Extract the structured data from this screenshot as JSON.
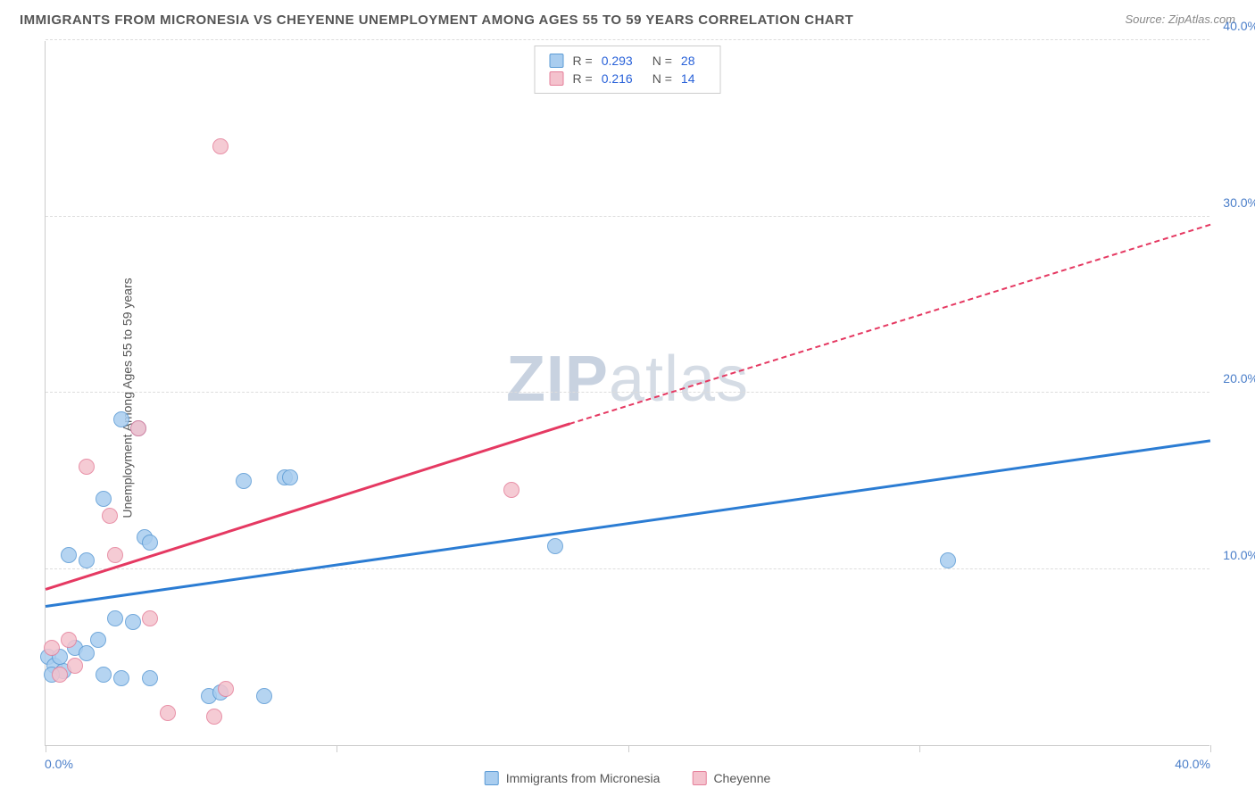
{
  "chart": {
    "type": "scatter",
    "title": "IMMIGRANTS FROM MICRONESIA VS CHEYENNE UNEMPLOYMENT AMONG AGES 55 TO 59 YEARS CORRELATION CHART",
    "source": "Source: ZipAtlas.com",
    "y_axis_label": "Unemployment Among Ages 55 to 59 years",
    "watermark_part1": "ZIP",
    "watermark_part2": "atlas",
    "xlim": [
      0,
      40
    ],
    "ylim": [
      0,
      40
    ],
    "y_ticks": [
      10,
      20,
      30,
      40
    ],
    "y_tick_labels": [
      "10.0%",
      "20.0%",
      "30.0%",
      "40.0%"
    ],
    "x_ticks": [
      0,
      10,
      20,
      30,
      40
    ],
    "x_tick_label_left": "0.0%",
    "x_tick_label_right": "40.0%",
    "background_color": "#ffffff",
    "grid_color": "#dddddd",
    "axis_color": "#cccccc",
    "text_color": "#555555",
    "tick_label_color": "#4a7ec9",
    "series": [
      {
        "name": "Immigrants from Micronesia",
        "fill_color": "#a9cdef",
        "stroke_color": "#5b9bd5",
        "r_label": "R =",
        "r_value": "0.293",
        "n_label": "N =",
        "n_value": "28",
        "trend": {
          "x1": 0,
          "y1": 7.8,
          "x2": 40,
          "y2": 17.2,
          "color": "#2b7cd3",
          "dash": false,
          "segments": [
            {
              "x1": 0,
              "y1": 7.8,
              "x2": 40,
              "y2": 17.2,
              "dashed": false
            }
          ]
        },
        "points": [
          {
            "x": 0.1,
            "y": 5.0
          },
          {
            "x": 0.3,
            "y": 4.5
          },
          {
            "x": 0.6,
            "y": 4.2
          },
          {
            "x": 0.5,
            "y": 5.0
          },
          {
            "x": 1.0,
            "y": 5.5
          },
          {
            "x": 1.4,
            "y": 5.2
          },
          {
            "x": 1.8,
            "y": 6.0
          },
          {
            "x": 0.8,
            "y": 10.8
          },
          {
            "x": 2.0,
            "y": 4.0
          },
          {
            "x": 2.6,
            "y": 3.8
          },
          {
            "x": 2.4,
            "y": 7.2
          },
          {
            "x": 3.0,
            "y": 7.0
          },
          {
            "x": 3.6,
            "y": 3.8
          },
          {
            "x": 1.4,
            "y": 10.5
          },
          {
            "x": 2.0,
            "y": 14.0
          },
          {
            "x": 2.6,
            "y": 18.5
          },
          {
            "x": 3.4,
            "y": 11.8
          },
          {
            "x": 3.6,
            "y": 11.5
          },
          {
            "x": 5.6,
            "y": 2.8
          },
          {
            "x": 6.0,
            "y": 3.0
          },
          {
            "x": 7.5,
            "y": 2.8
          },
          {
            "x": 6.8,
            "y": 15.0
          },
          {
            "x": 8.2,
            "y": 15.2
          },
          {
            "x": 8.4,
            "y": 15.2
          },
          {
            "x": 3.2,
            "y": 18.0
          },
          {
            "x": 17.5,
            "y": 11.3
          },
          {
            "x": 31.0,
            "y": 10.5
          },
          {
            "x": 0.2,
            "y": 4.0
          }
        ]
      },
      {
        "name": "Cheyenne",
        "fill_color": "#f4c2cd",
        "stroke_color": "#e57f9a",
        "r_label": "R =",
        "r_value": "0.216",
        "n_label": "N =",
        "n_value": "14",
        "trend": {
          "color": "#e53962",
          "segments": [
            {
              "x1": 0,
              "y1": 8.8,
              "x2": 18,
              "y2": 18.2,
              "dashed": false
            },
            {
              "x1": 18,
              "y1": 18.2,
              "x2": 40,
              "y2": 29.5,
              "dashed": true
            }
          ]
        },
        "points": [
          {
            "x": 0.2,
            "y": 5.5
          },
          {
            "x": 0.5,
            "y": 4.0
          },
          {
            "x": 0.8,
            "y": 6.0
          },
          {
            "x": 1.0,
            "y": 4.5
          },
          {
            "x": 1.4,
            "y": 15.8
          },
          {
            "x": 2.2,
            "y": 13.0
          },
          {
            "x": 2.4,
            "y": 10.8
          },
          {
            "x": 3.2,
            "y": 18.0
          },
          {
            "x": 3.6,
            "y": 7.2
          },
          {
            "x": 4.2,
            "y": 1.8
          },
          {
            "x": 5.8,
            "y": 1.6
          },
          {
            "x": 6.2,
            "y": 3.2
          },
          {
            "x": 6.0,
            "y": 34.0
          },
          {
            "x": 16.0,
            "y": 14.5
          }
        ]
      }
    ]
  }
}
